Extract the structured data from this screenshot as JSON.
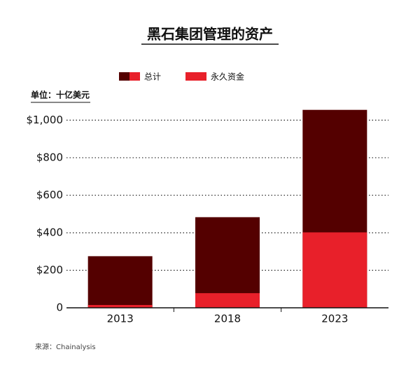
{
  "chart_data": {
    "type": "bar",
    "barmode": "overlay",
    "title": "黑石集团管理的资产",
    "unit_label": "单位：十亿美元",
    "source": "来源：Chainalysis",
    "categories": [
      "2013",
      "2018",
      "2023"
    ],
    "series": [
      {
        "name": "总计",
        "color": "#540000",
        "values": [
          275,
          483,
          1055
        ]
      },
      {
        "name": "永久资金",
        "color": "#e8202a",
        "values": [
          15,
          78,
          402
        ]
      }
    ],
    "ylim": [
      0,
      1080
    ],
    "yticks": [
      0,
      {
        "value": 200,
        "label": "$200"
      },
      {
        "value": 400,
        "label": "$400"
      },
      {
        "value": 600,
        "label": "$600"
      },
      {
        "value": 800,
        "label": "$800"
      },
      {
        "value": 1000,
        "label": "$1,000"
      }
    ],
    "grid": true
  }
}
